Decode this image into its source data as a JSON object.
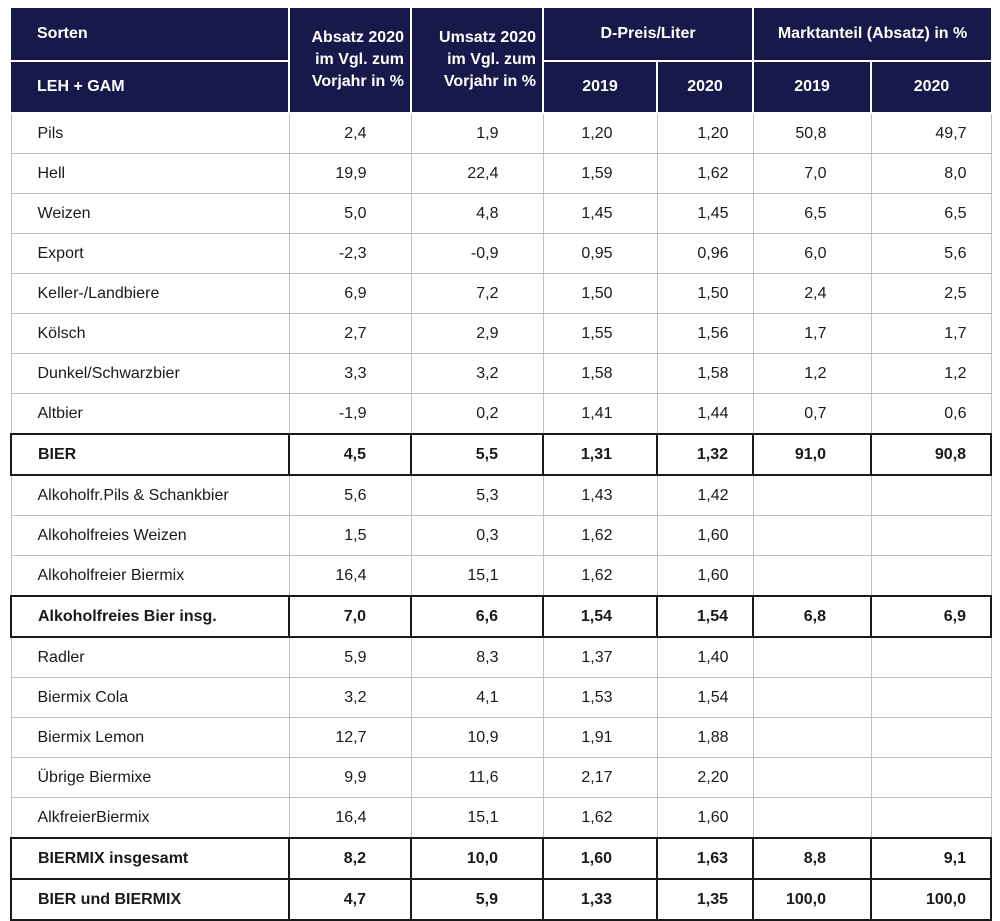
{
  "header": {
    "sorten": "Sorten",
    "leh_gam": "LEH + GAM",
    "absatz": "Absatz 2020 im Vgl. zum Vorjahr in %",
    "umsatz": "Umsatz 2020 im Vgl. zum Vorjahr in %",
    "preis": "D-Preis/Liter",
    "marktanteil": "Marktanteil (Absatz) in %",
    "year_2019": "2019",
    "year_2020": "2020"
  },
  "rows": [
    {
      "name": "Pils",
      "absatz": "2,4",
      "umsatz": "1,9",
      "preis2019": "1,20",
      "preis2020": "1,20",
      "ma2019": "50,8",
      "ma2020": "49,7",
      "bold": false
    },
    {
      "name": "Hell",
      "absatz": "19,9",
      "umsatz": "22,4",
      "preis2019": "1,59",
      "preis2020": "1,62",
      "ma2019": "7,0",
      "ma2020": "8,0",
      "bold": false
    },
    {
      "name": "Weizen",
      "absatz": "5,0",
      "umsatz": "4,8",
      "preis2019": "1,45",
      "preis2020": "1,45",
      "ma2019": "6,5",
      "ma2020": "6,5",
      "bold": false
    },
    {
      "name": "Export",
      "absatz": "-2,3",
      "umsatz": "-0,9",
      "preis2019": "0,95",
      "preis2020": "0,96",
      "ma2019": "6,0",
      "ma2020": "5,6",
      "bold": false
    },
    {
      "name": "Keller-/Landbiere",
      "absatz": "6,9",
      "umsatz": "7,2",
      "preis2019": "1,50",
      "preis2020": "1,50",
      "ma2019": "2,4",
      "ma2020": "2,5",
      "bold": false
    },
    {
      "name": "Kölsch",
      "absatz": "2,7",
      "umsatz": "2,9",
      "preis2019": "1,55",
      "preis2020": "1,56",
      "ma2019": "1,7",
      "ma2020": "1,7",
      "bold": false
    },
    {
      "name": "Dunkel/Schwarzbier",
      "absatz": "3,3",
      "umsatz": "3,2",
      "preis2019": "1,58",
      "preis2020": "1,58",
      "ma2019": "1,2",
      "ma2020": "1,2",
      "bold": false
    },
    {
      "name": "Altbier",
      "absatz": "-1,9",
      "umsatz": "0,2",
      "preis2019": "1,41",
      "preis2020": "1,44",
      "ma2019": "0,7",
      "ma2020": "0,6",
      "bold": false
    },
    {
      "name": "BIER",
      "absatz": "4,5",
      "umsatz": "5,5",
      "preis2019": "1,31",
      "preis2020": "1,32",
      "ma2019": "91,0",
      "ma2020": "90,8",
      "bold": true
    },
    {
      "name": "Alkoholfr.Pils & Schankbier",
      "absatz": "5,6",
      "umsatz": "5,3",
      "preis2019": "1,43",
      "preis2020": "1,42",
      "ma2019": "",
      "ma2020": "",
      "bold": false
    },
    {
      "name": "Alkoholfreies Weizen",
      "absatz": "1,5",
      "umsatz": "0,3",
      "preis2019": "1,62",
      "preis2020": "1,60",
      "ma2019": "",
      "ma2020": "",
      "bold": false
    },
    {
      "name": "Alkoholfreier Biermix",
      "absatz": "16,4",
      "umsatz": "15,1",
      "preis2019": "1,62",
      "preis2020": "1,60",
      "ma2019": "",
      "ma2020": "",
      "bold": false
    },
    {
      "name": "Alkoholfreies Bier insg.",
      "absatz": "7,0",
      "umsatz": "6,6",
      "preis2019": "1,54",
      "preis2020": "1,54",
      "ma2019": "6,8",
      "ma2020": "6,9",
      "bold": true
    },
    {
      "name": "Radler",
      "absatz": "5,9",
      "umsatz": "8,3",
      "preis2019": "1,37",
      "preis2020": "1,40",
      "ma2019": "",
      "ma2020": "",
      "bold": false
    },
    {
      "name": "Biermix Cola",
      "absatz": "3,2",
      "umsatz": "4,1",
      "preis2019": "1,53",
      "preis2020": "1,54",
      "ma2019": "",
      "ma2020": "",
      "bold": false
    },
    {
      "name": "Biermix Lemon",
      "absatz": "12,7",
      "umsatz": "10,9",
      "preis2019": "1,91",
      "preis2020": "1,88",
      "ma2019": "",
      "ma2020": "",
      "bold": false
    },
    {
      "name": "Übrige Biermixe",
      "absatz": "9,9",
      "umsatz": "11,6",
      "preis2019": "2,17",
      "preis2020": "2,20",
      "ma2019": "",
      "ma2020": "",
      "bold": false
    },
    {
      "name": "AlkfreierBiermix",
      "absatz": "16,4",
      "umsatz": "15,1",
      "preis2019": "1,62",
      "preis2020": "1,60",
      "ma2019": "",
      "ma2020": "",
      "bold": false
    },
    {
      "name": "BIERMIX insgesamt",
      "absatz": "8,2",
      "umsatz": "10,0",
      "preis2019": "1,60",
      "preis2020": "1,63",
      "ma2019": "8,8",
      "ma2020": "9,1",
      "bold": true
    },
    {
      "name": "BIER und BIERMIX",
      "absatz": "4,7",
      "umsatz": "5,9",
      "preis2019": "1,33",
      "preis2020": "1,35",
      "ma2019": "100,0",
      "ma2020": "100,0",
      "bold": true
    }
  ]
}
